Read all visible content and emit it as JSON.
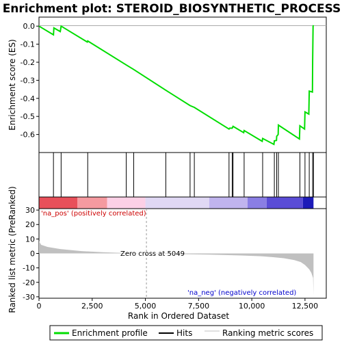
{
  "chart_data": {
    "type": "line",
    "title": "Enrichment plot: STEROID_BIOSYNTHETIC_PROCESS",
    "xlabel": "Rank in Ordered Dataset",
    "ylabel_top": "Enrichment score (ES)",
    "ylabel_bottom": "Ranked list metric (PreRanked)",
    "xlim": [
      0,
      13500
    ],
    "es_ylim": [
      -0.7,
      0.05
    ],
    "metric_ylim": [
      -31,
      31
    ],
    "x_ticks": [
      0,
      2500,
      5000,
      7500,
      10000,
      12500
    ],
    "x_tick_labels": [
      "0",
      "2,500",
      "5,000",
      "7,500",
      "10,000",
      "12,500"
    ],
    "es_ticks": [
      0.0,
      -0.1,
      -0.2,
      -0.3,
      -0.4,
      -0.5,
      -0.6
    ],
    "es_tick_labels": [
      "0.0",
      "-0.1",
      "-0.2",
      "-0.3",
      "-0.4",
      "-0.5",
      "-0.6"
    ],
    "metric_ticks": [
      30,
      20,
      10,
      0,
      -10,
      -20,
      -30
    ],
    "metric_tick_labels": [
      "30",
      "20",
      "10",
      "0",
      "-10",
      "-20",
      "-30"
    ],
    "es_curve": [
      [
        0,
        0.0
      ],
      [
        680,
        -0.048
      ],
      [
        700,
        -0.01
      ],
      [
        1000,
        -0.03
      ],
      [
        1040,
        0.0
      ],
      [
        2270,
        -0.088
      ],
      [
        2290,
        -0.082
      ],
      [
        4100,
        -0.215
      ],
      [
        4450,
        -0.24
      ],
      [
        5960,
        -0.355
      ],
      [
        7100,
        -0.44
      ],
      [
        7300,
        -0.45
      ],
      [
        8930,
        -0.57
      ],
      [
        8960,
        -0.565
      ],
      [
        9080,
        -0.565
      ],
      [
        9120,
        -0.555
      ],
      [
        9620,
        -0.59
      ],
      [
        9640,
        -0.578
      ],
      [
        10490,
        -0.638
      ],
      [
        10510,
        -0.622
      ],
      [
        11040,
        -0.655
      ],
      [
        11060,
        -0.635
      ],
      [
        11160,
        -0.633
      ],
      [
        11170,
        -0.61
      ],
      [
        11240,
        -0.6
      ],
      [
        11250,
        -0.548
      ],
      [
        12240,
        -0.625
      ],
      [
        12260,
        -0.552
      ],
      [
        12480,
        -0.57
      ],
      [
        12500,
        -0.475
      ],
      [
        12680,
        -0.487
      ],
      [
        12700,
        -0.36
      ],
      [
        12850,
        -0.365
      ],
      [
        12860,
        -0.195
      ],
      [
        12880,
        0.0
      ],
      [
        12900,
        0.005
      ]
    ],
    "hits": [
      680,
      1040,
      2290,
      4100,
      4450,
      5960,
      7100,
      7300,
      8930,
      9080,
      9120,
      9640,
      10510,
      11060,
      11170,
      11250,
      12260,
      12500,
      12700,
      12860,
      12900
    ],
    "metric_profile": [
      [
        0,
        8.5
      ],
      [
        100,
        6.0
      ],
      [
        400,
        4.5
      ],
      [
        1000,
        3.0
      ],
      [
        2000,
        1.6
      ],
      [
        3000,
        0.8
      ],
      [
        4000,
        0.3
      ],
      [
        5049,
        0.0
      ],
      [
        6500,
        -0.4
      ],
      [
        8000,
        -0.8
      ],
      [
        9500,
        -1.4
      ],
      [
        10500,
        -2.0
      ],
      [
        11000,
        -2.6
      ],
      [
        11500,
        -3.3
      ],
      [
        12000,
        -4.6
      ],
      [
        12300,
        -6.0
      ],
      [
        12500,
        -8.0
      ],
      [
        12700,
        -11.0
      ],
      [
        12800,
        -13.5
      ],
      [
        12880,
        -17
      ],
      [
        12900,
        -29
      ]
    ],
    "heatmap_segments": [
      {
        "from": 0,
        "to": 1800,
        "color": "#e8505a"
      },
      {
        "from": 1800,
        "to": 3200,
        "color": "#f59aa0"
      },
      {
        "from": 3200,
        "to": 5000,
        "color": "#fcd0e6"
      },
      {
        "from": 5000,
        "to": 8000,
        "color": "#e0d8f4"
      },
      {
        "from": 8000,
        "to": 9800,
        "color": "#c0b4ee"
      },
      {
        "from": 9800,
        "to": 10700,
        "color": "#8a7ee4"
      },
      {
        "from": 10700,
        "to": 12400,
        "color": "#5a4cd6"
      },
      {
        "from": 12400,
        "to": 12900,
        "color": "#1c1ab8"
      }
    ],
    "annotations": {
      "pos": "'na_pos' (positively correlated)",
      "neg": "'na_neg' (negatively correlated)",
      "zero_cross": "Zero cross at 5049"
    },
    "zero_cross": 5049,
    "legend": [
      {
        "label": "Enrichment profile",
        "color": "#00dd00"
      },
      {
        "label": "Hits",
        "color": "#000000"
      },
      {
        "label": "Ranking metric scores",
        "color": "#c0c0c0"
      }
    ],
    "colors": {
      "curve": "#00dd00",
      "hits": "#000000",
      "metric": "#c0c0c0"
    }
  }
}
